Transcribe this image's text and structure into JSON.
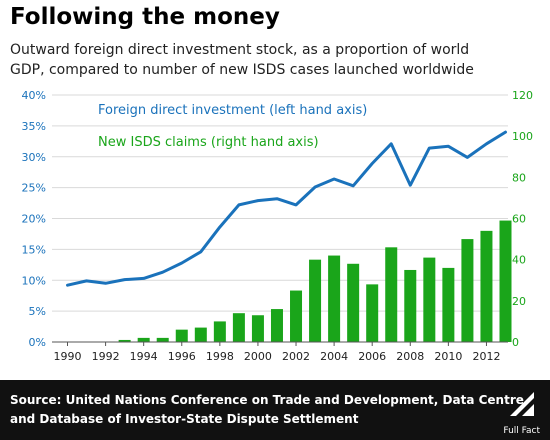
{
  "header": {
    "title": "Following the money",
    "subtitle_line1": "Outward foreign direct investment stock, as a proportion of world",
    "subtitle_line2": "GDP, compared to number of new ISDS cases launched worldwide"
  },
  "footer": {
    "source_line1": "Source: United Nations Conference on Trade and Development, Data Centre",
    "source_line2": "and Database of Investor-State Dispute Settlement",
    "logo_text": "Full Fact"
  },
  "colors": {
    "line": "#1a72bb",
    "bars": "#1aa51a",
    "left_axis": "#1a72bb",
    "right_axis": "#1aa51a",
    "grid": "#d9d9d9"
  },
  "chart_data": {
    "type": "bar",
    "x": [
      1990,
      1991,
      1992,
      1993,
      1994,
      1995,
      1996,
      1997,
      1998,
      1999,
      2000,
      2001,
      2002,
      2003,
      2004,
      2005,
      2006,
      2007,
      2008,
      2009,
      2010,
      2011,
      2012,
      2013
    ],
    "x_tick_labels": [
      "1990",
      "1992",
      "1994",
      "1996",
      "1998",
      "2000",
      "2002",
      "2004",
      "2006",
      "2008",
      "2010",
      "2012"
    ],
    "left_axis": {
      "ylim": [
        0,
        40
      ],
      "ticks": [
        "0%",
        "5%",
        "10%",
        "15%",
        "20%",
        "25%",
        "30%",
        "35%",
        "40%"
      ]
    },
    "right_axis": {
      "ylim": [
        0,
        120
      ],
      "ticks": [
        "0",
        "20",
        "40",
        "60",
        "80",
        "100",
        "120"
      ]
    },
    "grid": true,
    "series": [
      {
        "name": "Foreign direct investment (left hand axis)",
        "type": "line",
        "axis": "left",
        "values": [
          9.2,
          9.9,
          9.5,
          10.1,
          10.3,
          11.3,
          12.8,
          14.6,
          18.6,
          22.2,
          22.9,
          23.2,
          22.2,
          25.1,
          26.4,
          25.3,
          28.9,
          32.1,
          25.4,
          31.4,
          31.7,
          29.9,
          32.1,
          34.0
        ]
      },
      {
        "name": "New ISDS claims (right hand axis)",
        "type": "bar",
        "axis": "right",
        "values": [
          0,
          0,
          0,
          1,
          2,
          2,
          6,
          7,
          10,
          14,
          13,
          16,
          25,
          40,
          42,
          38,
          28,
          46,
          35,
          41,
          36,
          50,
          54,
          59
        ]
      }
    ]
  }
}
